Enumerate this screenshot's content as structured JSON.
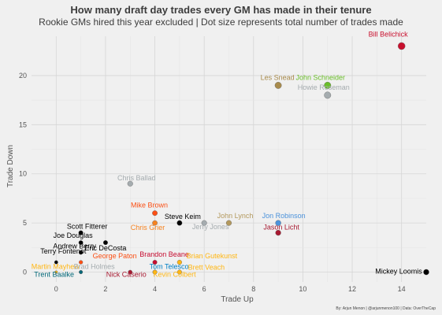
{
  "chart_data": {
    "type": "scatter",
    "title": "How many draft day trades every GM has made in their tenure",
    "subtitle": "Rookie GMs hired this year excluded | Dot size represents total number of trades made",
    "xlabel": "Trade Up",
    "ylabel": "Trade Down",
    "xlim": [
      -1,
      15
    ],
    "ylim": [
      -1,
      24
    ],
    "x_ticks": [
      0,
      2,
      4,
      6,
      8,
      10,
      12,
      14
    ],
    "y_ticks": [
      0,
      5,
      10,
      15,
      20
    ],
    "grid": true,
    "caption": "By: Arjun Menon | @arjunmenon100 | Data: OverTheCap",
    "points": [
      {
        "name": "Bill Belichick",
        "x": 14,
        "y": 23,
        "color": "#c8102e"
      },
      {
        "name": "Les Snead",
        "x": 9,
        "y": 19,
        "color": "#a88b4c"
      },
      {
        "name": "John Schneider",
        "x": 11,
        "y": 19,
        "color": "#69be28"
      },
      {
        "name": "Howie Roseman",
        "x": 11,
        "y": 18,
        "color": "#a5acaf"
      },
      {
        "name": "Chris Ballad",
        "x": 3,
        "y": 9,
        "color": "#a5acaf"
      },
      {
        "name": "Mike Brown",
        "x": 4,
        "y": 6,
        "color": "#fb4f14"
      },
      {
        "name": "Steve Keim",
        "x": 5,
        "y": 5,
        "color": "#000000"
      },
      {
        "name": "Chris Grier",
        "x": 4,
        "y": 5,
        "color": "#f58220"
      },
      {
        "name": "Jerry Jones",
        "x": 6,
        "y": 5,
        "color": "#a5acaf"
      },
      {
        "name": "John Lynch",
        "x": 7,
        "y": 5,
        "color": "#b3995d"
      },
      {
        "name": "Jon Robinson",
        "x": 9,
        "y": 5,
        "color": "#4b92db"
      },
      {
        "name": "Jason Licht",
        "x": 9,
        "y": 4,
        "color": "#a71930"
      },
      {
        "name": "Scott Fitterer",
        "x": 1,
        "y": 4,
        "color": "#000000"
      },
      {
        "name": "Joe Douglas",
        "x": 1,
        "y": 3,
        "color": "#000000"
      },
      {
        "name": "Eric DeCosta",
        "x": 2,
        "y": 3,
        "color": "#000000"
      },
      {
        "name": "Andrew Berry",
        "x": 1,
        "y": 2,
        "color": "#000000"
      },
      {
        "name": "Terry Fontenot",
        "x": 0,
        "y": 1,
        "color": "#000000"
      },
      {
        "name": "George Paton",
        "x": 1,
        "y": 1,
        "color": "#fb4f14"
      },
      {
        "name": "Brandon Beane",
        "x": 4,
        "y": 1,
        "color": "#c60c30"
      },
      {
        "name": "Brian Gutekunst",
        "x": 5,
        "y": 1,
        "color": "#ffb612"
      },
      {
        "name": "Martin Mayhew",
        "x": 0,
        "y": 0,
        "color": "#ffb612"
      },
      {
        "name": "Brad Holmes",
        "x": 1,
        "y": 0,
        "color": "#a5acaf"
      },
      {
        "name": "Tom Telesco",
        "x": 4,
        "y": 0,
        "color": "#0080c6"
      },
      {
        "name": "Brett Veach",
        "x": 5,
        "y": 0,
        "color": "#ffb612"
      },
      {
        "name": "Trent Baalke",
        "x": 1,
        "y": 0,
        "color": "#006778"
      },
      {
        "name": "Nick Caserio",
        "x": 3,
        "y": 0,
        "color": "#a71930"
      },
      {
        "name": "Kevin Colbert",
        "x": 4,
        "y": 0,
        "color": "#ffb612"
      },
      {
        "name": "Mickey Loomis",
        "x": 15,
        "y": 0,
        "color": "#000000"
      }
    ]
  }
}
